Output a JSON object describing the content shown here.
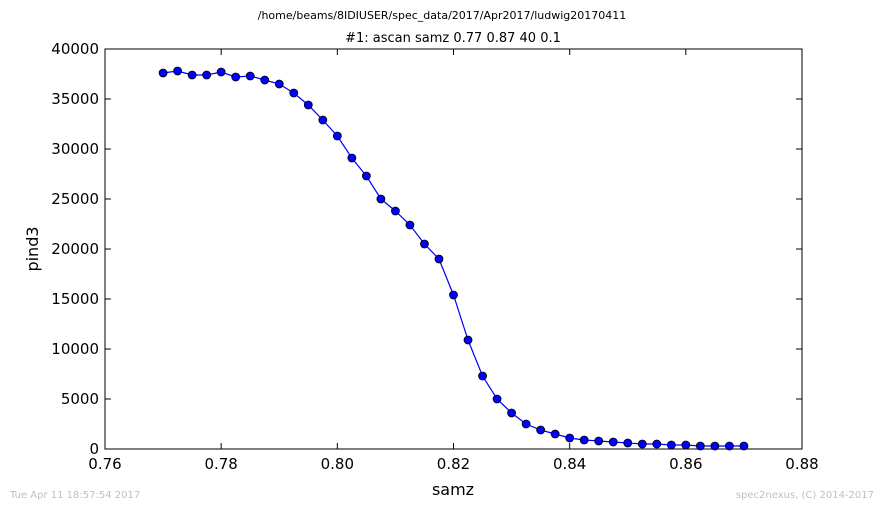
{
  "header": {
    "path": "/home/beams/8IDIUSER/spec_data/2017/Apr2017/ludwig20170411"
  },
  "footer": {
    "timestamp": "Tue Apr 11 18:57:54 2017",
    "credit": "spec2nexus, (C) 2014-2017"
  },
  "chart_data": {
    "type": "line",
    "title": "#1: ascan  samz 0.77 0.87  40 0.1",
    "xlabel": "samz",
    "ylabel": "pind3",
    "xlim": [
      0.76,
      0.88
    ],
    "ylim": [
      0,
      40000
    ],
    "xticks": [
      "0.76",
      "0.78",
      "0.80",
      "0.82",
      "0.84",
      "0.86",
      "0.88"
    ],
    "yticks": [
      "0",
      "5000",
      "10000",
      "15000",
      "20000",
      "25000",
      "30000",
      "35000",
      "40000"
    ],
    "grid": false,
    "series_color": "#0000ff",
    "marker": "circle",
    "x": [
      0.77,
      0.7725,
      0.775,
      0.7775,
      0.78,
      0.7825,
      0.785,
      0.7875,
      0.79,
      0.7925,
      0.795,
      0.7975,
      0.8,
      0.8025,
      0.805,
      0.8075,
      0.81,
      0.8125,
      0.815,
      0.8175,
      0.82,
      0.8225,
      0.825,
      0.8275,
      0.83,
      0.8325,
      0.835,
      0.8375,
      0.84,
      0.8425,
      0.845,
      0.8475,
      0.85,
      0.8525,
      0.855,
      0.8575,
      0.86,
      0.8625,
      0.865,
      0.8675,
      0.87
    ],
    "y": [
      37600,
      37800,
      37400,
      37400,
      37700,
      37200,
      37300,
      36900,
      36500,
      35600,
      34400,
      32900,
      31300,
      29100,
      27300,
      25000,
      23800,
      22400,
      20500,
      19000,
      15400,
      10900,
      7300,
      5000,
      3600,
      2500,
      1900,
      1500,
      1100,
      900,
      800,
      700,
      600,
      500,
      500,
      400,
      400,
      300,
      300,
      300,
      300
    ]
  }
}
